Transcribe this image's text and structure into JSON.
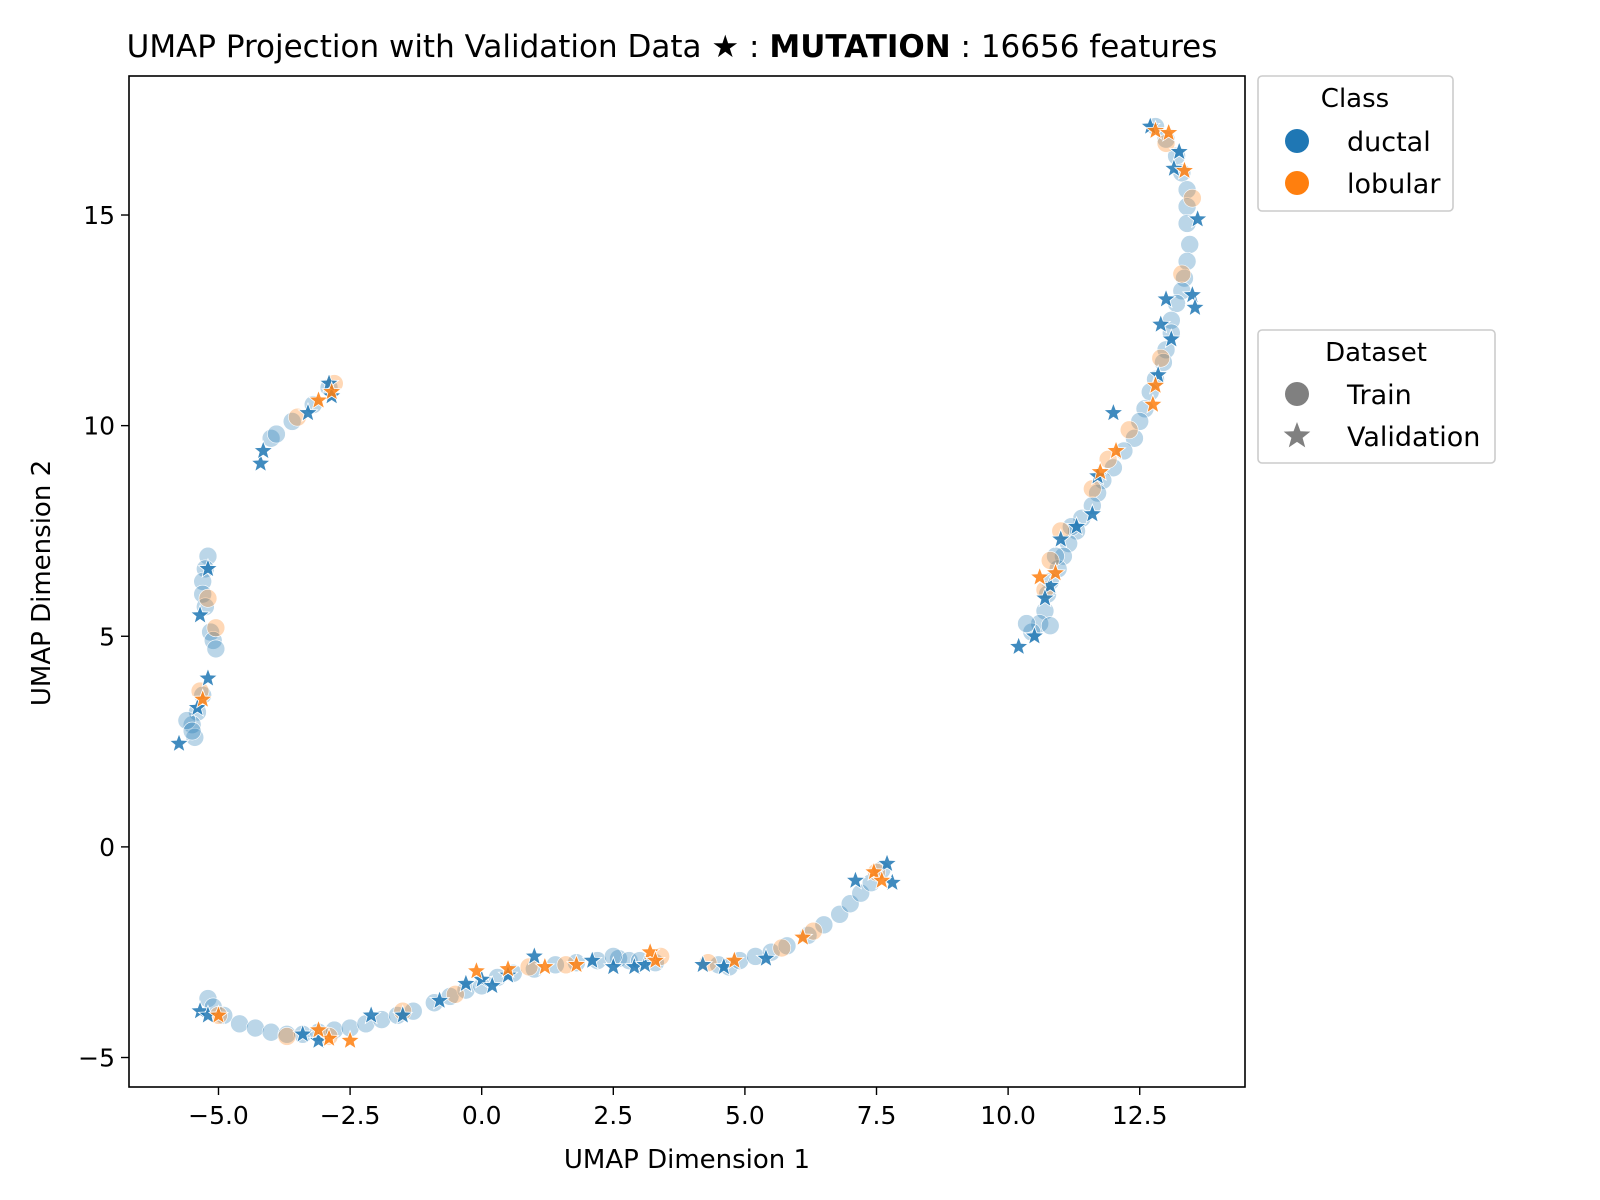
{
  "chart_data": {
    "type": "scatter",
    "title": {
      "prefix": "UMAP Projection with Validation Data ★ : ",
      "bold": "MUTATION",
      "suffix": " : 16656 features"
    },
    "xlabel": "UMAP Dimension 1",
    "ylabel": "UMAP Dimension 2",
    "xlim": [
      -6.7,
      14.5
    ],
    "ylim": [
      -5.7,
      18.3
    ],
    "xticks": [
      -5.0,
      -2.5,
      0.0,
      2.5,
      5.0,
      7.5,
      10.0,
      12.5
    ],
    "xtick_labels": [
      "−5.0",
      "−2.5",
      "0.0",
      "2.5",
      "5.0",
      "7.5",
      "10.0",
      "12.5"
    ],
    "yticks": [
      -5,
      0,
      5,
      10,
      15
    ],
    "ytick_labels": [
      "−5",
      "0",
      "5",
      "10",
      "15"
    ],
    "grid": false,
    "colors": {
      "ductal": "#1f77b4",
      "lobular": "#ff7f0e",
      "dataset_marker": "#808080"
    },
    "legend_class": {
      "title": "Class",
      "placement": "outside-top-right",
      "entries": [
        "ductal",
        "lobular"
      ]
    },
    "legend_dataset": {
      "title": "Dataset",
      "placement": "outside-right",
      "entries": [
        "Train",
        "Validation"
      ]
    },
    "series": [
      {
        "name": "ductal",
        "dataset": "Train",
        "points": [
          [
            12.8,
            17.1
          ],
          [
            13.0,
            16.8
          ],
          [
            13.2,
            16.4
          ],
          [
            13.3,
            16.0
          ],
          [
            13.4,
            15.6
          ],
          [
            13.4,
            15.2
          ],
          [
            13.4,
            14.8
          ],
          [
            13.45,
            14.3
          ],
          [
            13.4,
            13.9
          ],
          [
            13.35,
            13.5
          ],
          [
            13.3,
            13.2
          ],
          [
            13.2,
            12.9
          ],
          [
            13.1,
            12.5
          ],
          [
            13.1,
            12.2
          ],
          [
            13.0,
            11.8
          ],
          [
            12.95,
            11.5
          ],
          [
            12.8,
            11.1
          ],
          [
            12.7,
            10.8
          ],
          [
            12.6,
            10.4
          ],
          [
            12.5,
            10.1
          ],
          [
            12.4,
            9.7
          ],
          [
            12.2,
            9.4
          ],
          [
            12.0,
            9.0
          ],
          [
            11.8,
            8.7
          ],
          [
            11.7,
            8.4
          ],
          [
            11.6,
            8.1
          ],
          [
            11.4,
            7.8
          ],
          [
            11.3,
            7.5
          ],
          [
            11.15,
            7.2
          ],
          [
            11.05,
            6.9
          ],
          [
            10.95,
            6.6
          ],
          [
            10.8,
            6.3
          ],
          [
            10.75,
            6.0
          ],
          [
            10.7,
            5.6
          ],
          [
            10.6,
            5.3
          ],
          [
            10.45,
            5.1
          ],
          [
            10.35,
            5.3
          ],
          [
            10.8,
            5.25
          ],
          [
            10.9,
            6.9
          ],
          [
            11.2,
            7.6
          ],
          [
            -5.2,
            6.9
          ],
          [
            -5.25,
            6.6
          ],
          [
            -5.3,
            6.3
          ],
          [
            -5.3,
            6.0
          ],
          [
            -5.25,
            5.7
          ],
          [
            -5.15,
            5.1
          ],
          [
            -5.1,
            4.9
          ],
          [
            -5.05,
            4.7
          ],
          [
            -5.3,
            3.6
          ],
          [
            -5.4,
            3.2
          ],
          [
            -5.5,
            2.9
          ],
          [
            -5.45,
            2.6
          ],
          [
            -5.6,
            3.0
          ],
          [
            -5.5,
            2.75
          ],
          [
            -4.0,
            9.7
          ],
          [
            -3.9,
            9.8
          ],
          [
            -3.6,
            10.1
          ],
          [
            -3.2,
            10.5
          ],
          [
            -2.9,
            10.9
          ],
          [
            -5.2,
            -3.6
          ],
          [
            -5.1,
            -3.8
          ],
          [
            -4.9,
            -4.0
          ],
          [
            -4.6,
            -4.2
          ],
          [
            -4.3,
            -4.3
          ],
          [
            -4.0,
            -4.4
          ],
          [
            -3.7,
            -4.45
          ],
          [
            -3.4,
            -4.45
          ],
          [
            -3.1,
            -4.4
          ],
          [
            -2.8,
            -4.35
          ],
          [
            -2.5,
            -4.3
          ],
          [
            -2.2,
            -4.2
          ],
          [
            -1.9,
            -4.1
          ],
          [
            -1.6,
            -4.0
          ],
          [
            -1.3,
            -3.9
          ],
          [
            -0.9,
            -3.7
          ],
          [
            -0.6,
            -3.55
          ],
          [
            -0.3,
            -3.4
          ],
          [
            0.0,
            -3.3
          ],
          [
            0.3,
            -3.1
          ],
          [
            0.6,
            -3.0
          ],
          [
            1.0,
            -2.9
          ],
          [
            1.4,
            -2.8
          ],
          [
            1.8,
            -2.75
          ],
          [
            2.2,
            -2.7
          ],
          [
            2.6,
            -2.65
          ],
          [
            2.8,
            -2.7
          ],
          [
            3.0,
            -2.7
          ],
          [
            3.3,
            -2.75
          ],
          [
            2.5,
            -2.6
          ],
          [
            4.5,
            -2.8
          ],
          [
            4.7,
            -2.85
          ],
          [
            4.9,
            -2.7
          ],
          [
            5.2,
            -2.6
          ],
          [
            5.5,
            -2.5
          ],
          [
            5.8,
            -2.35
          ],
          [
            6.2,
            -2.1
          ],
          [
            6.5,
            -1.85
          ],
          [
            6.8,
            -1.6
          ],
          [
            7.0,
            -1.35
          ],
          [
            7.2,
            -1.1
          ],
          [
            7.4,
            -0.85
          ],
          [
            7.6,
            -0.55
          ]
        ]
      },
      {
        "name": "lobular",
        "dataset": "Train",
        "points": [
          [
            13.0,
            16.7
          ],
          [
            13.5,
            15.4
          ],
          [
            13.3,
            13.6
          ],
          [
            12.9,
            11.6
          ],
          [
            12.3,
            9.9
          ],
          [
            11.9,
            9.2
          ],
          [
            11.6,
            8.5
          ],
          [
            11.0,
            7.5
          ],
          [
            10.8,
            6.8
          ],
          [
            10.7,
            6.1
          ],
          [
            -5.2,
            5.9
          ],
          [
            -5.05,
            5.2
          ],
          [
            -5.35,
            3.7
          ],
          [
            -2.8,
            11.0
          ],
          [
            -3.5,
            10.2
          ],
          [
            -5.0,
            -4.0
          ],
          [
            -3.7,
            -4.5
          ],
          [
            -2.9,
            -4.5
          ],
          [
            -1.5,
            -3.9
          ],
          [
            0.9,
            -2.85
          ],
          [
            3.4,
            -2.6
          ],
          [
            4.3,
            -2.75
          ],
          [
            5.7,
            -2.4
          ],
          [
            6.3,
            -2.0
          ],
          [
            7.5,
            -0.6
          ],
          [
            1.6,
            -2.8
          ],
          [
            -0.5,
            -3.5
          ]
        ]
      },
      {
        "name": "ductal",
        "dataset": "Validation",
        "points": [
          [
            12.7,
            17.1
          ],
          [
            13.25,
            16.5
          ],
          [
            13.15,
            16.1
          ],
          [
            13.6,
            14.9
          ],
          [
            13.5,
            13.1
          ],
          [
            13.55,
            12.8
          ],
          [
            13.0,
            13.0
          ],
          [
            12.9,
            12.4
          ],
          [
            13.1,
            12.05
          ],
          [
            12.85,
            11.2
          ],
          [
            12.0,
            10.3
          ],
          [
            11.7,
            8.8
          ],
          [
            11.6,
            7.9
          ],
          [
            11.3,
            7.6
          ],
          [
            11.0,
            7.3
          ],
          [
            10.8,
            6.2
          ],
          [
            10.7,
            5.9
          ],
          [
            10.5,
            5.0
          ],
          [
            10.2,
            4.75
          ],
          [
            -5.2,
            6.6
          ],
          [
            -5.35,
            5.5
          ],
          [
            -5.2,
            4.0
          ],
          [
            -5.4,
            3.3
          ],
          [
            -5.75,
            2.45
          ],
          [
            -4.2,
            9.1
          ],
          [
            -4.15,
            9.4
          ],
          [
            -3.3,
            10.3
          ],
          [
            -2.85,
            10.7
          ],
          [
            -2.9,
            11.0
          ],
          [
            -5.35,
            -3.9
          ],
          [
            -5.2,
            -4.0
          ],
          [
            -3.4,
            -4.45
          ],
          [
            -3.1,
            -4.6
          ],
          [
            -2.1,
            -4.0
          ],
          [
            -1.5,
            -4.0
          ],
          [
            -0.8,
            -3.65
          ],
          [
            -0.3,
            -3.25
          ],
          [
            0.0,
            -3.15
          ],
          [
            0.2,
            -3.3
          ],
          [
            0.5,
            -3.05
          ],
          [
            1.0,
            -2.6
          ],
          [
            2.1,
            -2.7
          ],
          [
            2.5,
            -2.85
          ],
          [
            2.9,
            -2.85
          ],
          [
            3.1,
            -2.8
          ],
          [
            4.2,
            -2.8
          ],
          [
            4.6,
            -2.85
          ],
          [
            5.4,
            -2.65
          ],
          [
            7.1,
            -0.8
          ],
          [
            7.7,
            -0.4
          ],
          [
            7.8,
            -0.85
          ]
        ]
      },
      {
        "name": "lobular",
        "dataset": "Validation",
        "points": [
          [
            12.8,
            17.0
          ],
          [
            13.05,
            16.95
          ],
          [
            13.35,
            16.05
          ],
          [
            12.8,
            10.95
          ],
          [
            12.75,
            10.5
          ],
          [
            12.05,
            9.4
          ],
          [
            11.75,
            8.9
          ],
          [
            10.9,
            6.5
          ],
          [
            10.6,
            6.4
          ],
          [
            -5.3,
            3.5
          ],
          [
            -3.1,
            10.6
          ],
          [
            -2.85,
            10.8
          ],
          [
            -5.0,
            -4.0
          ],
          [
            -2.9,
            -4.55
          ],
          [
            -3.1,
            -4.35
          ],
          [
            -2.5,
            -4.6
          ],
          [
            0.5,
            -2.9
          ],
          [
            -0.1,
            -2.95
          ],
          [
            1.2,
            -2.85
          ],
          [
            1.8,
            -2.8
          ],
          [
            3.2,
            -2.5
          ],
          [
            3.3,
            -2.7
          ],
          [
            4.8,
            -2.7
          ],
          [
            6.1,
            -2.15
          ],
          [
            7.45,
            -0.6
          ],
          [
            7.6,
            -0.8
          ]
        ]
      }
    ]
  }
}
